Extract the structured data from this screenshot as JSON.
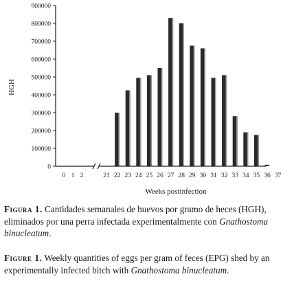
{
  "chart_data": {
    "type": "bar",
    "ylabel": "HGH",
    "xlabel": "Weeks postinfection",
    "ylim": [
      0,
      900000
    ],
    "yticks": [
      0,
      100000,
      200000,
      300000,
      400000,
      500000,
      600000,
      700000,
      800000,
      900000
    ],
    "ytick_labels": [
      "0",
      "100000",
      "200000",
      "300000",
      "400000",
      "500000",
      "600000",
      "700000",
      "800000",
      "900000"
    ],
    "axis_break": "between weeks 2 and 21",
    "grid": false,
    "legend": "none",
    "bar_color": "#2a2a2a",
    "categories": [
      "0",
      "1",
      "2",
      "21",
      "22",
      "23",
      "24",
      "25",
      "26",
      "27",
      "28",
      "29",
      "30",
      "31",
      "32",
      "33",
      "34",
      "35",
      "36",
      "37"
    ],
    "values": [
      0,
      0,
      0,
      0,
      300000,
      425000,
      495000,
      510000,
      550000,
      830000,
      800000,
      675000,
      660000,
      495000,
      510000,
      280000,
      190000,
      175000,
      8000,
      0
    ]
  },
  "caption_es": {
    "label": "Figura 1.",
    "text": "Cantidades semanales de huevos por gramo de heces (HGH), eliminados por una perra infectada experimentalmente con",
    "species": "Gnathostoma binucleatum",
    "end": "."
  },
  "caption_en": {
    "label": "Figure 1.",
    "text": "Weekly quantities of eggs per gram of feces (EPG) shed by an experimentally infected bitch with",
    "species": "Gnathostoma binucleatum",
    "end": "."
  }
}
